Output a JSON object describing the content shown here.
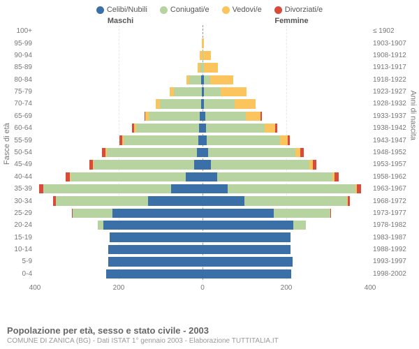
{
  "legend": {
    "items": [
      {
        "label": "Celibi/Nubili",
        "color": "#3a6fa7"
      },
      {
        "label": "Coniugati/e",
        "color": "#b7d3a0"
      },
      {
        "label": "Vedovi/e",
        "color": "#fbc45c"
      },
      {
        "label": "Divorziati/e",
        "color": "#d84b3a"
      }
    ]
  },
  "headers": {
    "male": "Maschi",
    "female": "Femmine"
  },
  "axis_titles": {
    "left": "Fasce di età",
    "right": "Anni di nascita"
  },
  "xaxis": {
    "max": 400,
    "ticks": [
      400,
      200,
      0,
      200,
      400
    ]
  },
  "age_rows": [
    {
      "age": "100+",
      "birth": "≤ 1902",
      "m": [
        0,
        0,
        0,
        0
      ],
      "f": [
        0,
        0,
        0,
        0
      ]
    },
    {
      "age": "95-99",
      "birth": "1903-1907",
      "m": [
        0,
        0,
        2,
        0
      ],
      "f": [
        0,
        0,
        4,
        0
      ]
    },
    {
      "age": "90-94",
      "birth": "1908-1912",
      "m": [
        0,
        0,
        6,
        0
      ],
      "f": [
        0,
        2,
        18,
        0
      ]
    },
    {
      "age": "85-89",
      "birth": "1913-1917",
      "m": [
        0,
        5,
        6,
        0
      ],
      "f": [
        0,
        4,
        32,
        0
      ]
    },
    {
      "age": "80-84",
      "birth": "1918-1922",
      "m": [
        3,
        28,
        8,
        0
      ],
      "f": [
        3,
        16,
        55,
        0
      ]
    },
    {
      "age": "75-79",
      "birth": "1923-1927",
      "m": [
        2,
        67,
        10,
        0
      ],
      "f": [
        3,
        40,
        62,
        0
      ]
    },
    {
      "age": "70-74",
      "birth": "1928-1932",
      "m": [
        4,
        97,
        10,
        0
      ],
      "f": [
        4,
        72,
        50,
        0
      ]
    },
    {
      "age": "65-69",
      "birth": "1933-1937",
      "m": [
        6,
        122,
        8,
        2
      ],
      "f": [
        6,
        98,
        35,
        2
      ]
    },
    {
      "age": "60-64",
      "birth": "1938-1942",
      "m": [
        8,
        150,
        6,
        4
      ],
      "f": [
        8,
        140,
        26,
        4
      ]
    },
    {
      "age": "55-59",
      "birth": "1943-1947",
      "m": [
        10,
        178,
        4,
        6
      ],
      "f": [
        10,
        175,
        18,
        6
      ]
    },
    {
      "age": "50-54",
      "birth": "1948-1952",
      "m": [
        14,
        215,
        3,
        8
      ],
      "f": [
        14,
        208,
        12,
        8
      ]
    },
    {
      "age": "45-49",
      "birth": "1953-1957",
      "m": [
        20,
        240,
        2,
        8
      ],
      "f": [
        20,
        235,
        8,
        8
      ]
    },
    {
      "age": "40-44",
      "birth": "1958-1962",
      "m": [
        40,
        275,
        1,
        10
      ],
      "f": [
        35,
        275,
        5,
        10
      ]
    },
    {
      "age": "35-39",
      "birth": "1963-1967",
      "m": [
        75,
        305,
        0,
        10
      ],
      "f": [
        60,
        305,
        3,
        10
      ]
    },
    {
      "age": "30-34",
      "birth": "1968-1972",
      "m": [
        130,
        220,
        0,
        6
      ],
      "f": [
        100,
        245,
        1,
        6
      ]
    },
    {
      "age": "25-29",
      "birth": "1973-1977",
      "m": [
        215,
        95,
        0,
        2
      ],
      "f": [
        170,
        135,
        0,
        2
      ]
    },
    {
      "age": "20-24",
      "birth": "1978-1982",
      "m": [
        236,
        14,
        0,
        0
      ],
      "f": [
        216,
        30,
        0,
        0
      ]
    },
    {
      "age": "15-19",
      "birth": "1983-1987",
      "m": [
        222,
        0,
        0,
        0
      ],
      "f": [
        210,
        0,
        0,
        0
      ]
    },
    {
      "age": "10-14",
      "birth": "1988-1992",
      "m": [
        225,
        0,
        0,
        0
      ],
      "f": [
        210,
        0,
        0,
        0
      ]
    },
    {
      "age": "5-9",
      "birth": "1993-1997",
      "m": [
        225,
        0,
        0,
        0
      ],
      "f": [
        215,
        0,
        0,
        0
      ]
    },
    {
      "age": "0-4",
      "birth": "1998-2002",
      "m": [
        230,
        0,
        0,
        0
      ],
      "f": [
        212,
        0,
        0,
        0
      ]
    }
  ],
  "footer": {
    "title": "Popolazione per età, sesso e stato civile - 2003",
    "subtitle": "COMUNE DI ZANICA (BG) - Dati ISTAT 1° gennaio 2003 - Elaborazione TUTTITALIA.IT"
  },
  "colors": {
    "series": [
      "#3a6fa7",
      "#b7d3a0",
      "#fbc45c",
      "#d84b3a"
    ],
    "grid": "#e8e8e8",
    "centerline": "#999"
  }
}
